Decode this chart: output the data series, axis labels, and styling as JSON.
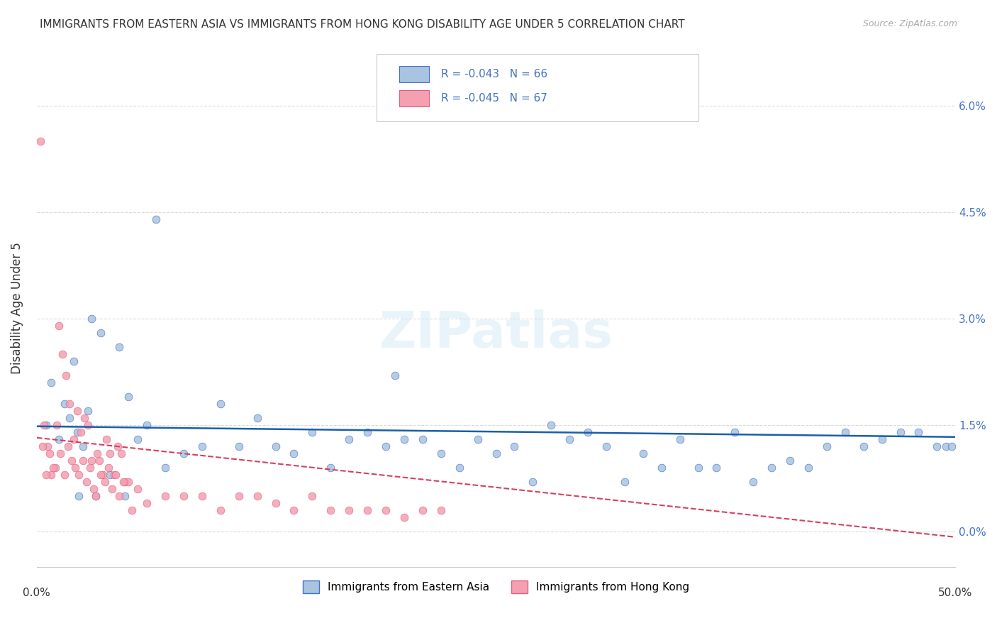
{
  "title": "IMMIGRANTS FROM EASTERN ASIA VS IMMIGRANTS FROM HONG KONG DISABILITY AGE UNDER 5 CORRELATION CHART",
  "source": "Source: ZipAtlas.com",
  "ylabel": "Disability Age Under 5",
  "ytick_vals": [
    0.0,
    1.5,
    3.0,
    4.5,
    6.0
  ],
  "xlim": [
    0.0,
    50.0
  ],
  "ylim": [
    -0.5,
    6.8
  ],
  "legend1_text": "R = -0.043   N = 66",
  "legend2_text": "R = -0.045   N = 67",
  "legend_label1": "Immigrants from Eastern Asia",
  "legend_label2": "Immigrants from Hong Kong",
  "color_blue": "#a8c4e0",
  "color_pink": "#f4a0b0",
  "color_blue_dark": "#4472c4",
  "color_pink_dark": "#e06080",
  "trendline_blue": "#1a5fa8",
  "trendline_pink": "#d44060",
  "blue_slope": -0.003,
  "blue_intercept": 1.48,
  "pink_slope": -0.028,
  "pink_intercept": 1.32,
  "blue_x": [
    0.5,
    0.8,
    1.2,
    1.5,
    1.8,
    2.0,
    2.2,
    2.5,
    2.8,
    3.0,
    3.5,
    4.0,
    4.5,
    5.0,
    5.5,
    6.0,
    7.0,
    8.0,
    9.0,
    10.0,
    11.0,
    12.0,
    13.0,
    14.0,
    15.0,
    16.0,
    17.0,
    18.0,
    19.0,
    20.0,
    21.0,
    22.0,
    23.0,
    24.0,
    25.0,
    26.0,
    27.0,
    28.0,
    29.0,
    30.0,
    31.0,
    32.0,
    33.0,
    34.0,
    35.0,
    36.0,
    37.0,
    38.0,
    39.0,
    40.0,
    41.0,
    42.0,
    43.0,
    44.0,
    45.0,
    46.0,
    47.0,
    48.0,
    49.0,
    49.5,
    49.8,
    2.3,
    3.2,
    4.8,
    6.5,
    19.5
  ],
  "blue_y": [
    1.5,
    2.1,
    1.3,
    1.8,
    1.6,
    2.4,
    1.4,
    1.2,
    1.7,
    3.0,
    2.8,
    0.8,
    2.6,
    1.9,
    1.3,
    1.5,
    0.9,
    1.1,
    1.2,
    1.8,
    1.2,
    1.6,
    1.2,
    1.1,
    1.4,
    0.9,
    1.3,
    1.4,
    1.2,
    1.3,
    1.3,
    1.1,
    0.9,
    1.3,
    1.1,
    1.2,
    0.7,
    1.5,
    1.3,
    1.4,
    1.2,
    0.7,
    1.1,
    0.9,
    1.3,
    0.9,
    0.9,
    1.4,
    0.7,
    0.9,
    1.0,
    0.9,
    1.2,
    1.4,
    1.2,
    1.3,
    1.4,
    1.4,
    1.2,
    1.2,
    1.2,
    0.5,
    0.5,
    0.5,
    4.4,
    2.2
  ],
  "pink_x": [
    0.2,
    0.4,
    0.6,
    0.8,
    1.0,
    1.2,
    1.4,
    1.6,
    1.8,
    2.0,
    2.2,
    2.4,
    2.6,
    2.8,
    3.0,
    3.2,
    3.4,
    3.6,
    3.8,
    4.0,
    4.2,
    4.4,
    4.6,
    4.8,
    5.0,
    5.5,
    6.0,
    7.0,
    8.0,
    9.0,
    10.0,
    11.0,
    12.0,
    13.0,
    14.0,
    15.0,
    16.0,
    17.0,
    18.0,
    19.0,
    20.0,
    21.0,
    22.0,
    0.3,
    0.5,
    0.7,
    0.9,
    1.1,
    1.3,
    1.5,
    1.7,
    1.9,
    2.1,
    2.3,
    2.5,
    2.7,
    2.9,
    3.1,
    3.3,
    3.5,
    3.7,
    3.9,
    4.1,
    4.3,
    4.5,
    4.7,
    5.2
  ],
  "pink_y": [
    5.5,
    1.5,
    1.2,
    0.8,
    0.9,
    2.9,
    2.5,
    2.2,
    1.8,
    1.3,
    1.7,
    1.4,
    1.6,
    1.5,
    1.0,
    0.5,
    1.0,
    0.8,
    1.3,
    1.1,
    0.8,
    1.2,
    1.1,
    0.7,
    0.7,
    0.6,
    0.4,
    0.5,
    0.5,
    0.5,
    0.3,
    0.5,
    0.5,
    0.4,
    0.3,
    0.5,
    0.3,
    0.3,
    0.3,
    0.3,
    0.2,
    0.3,
    0.3,
    1.2,
    0.8,
    1.1,
    0.9,
    1.5,
    1.1,
    0.8,
    1.2,
    1.0,
    0.9,
    0.8,
    1.0,
    0.7,
    0.9,
    0.6,
    1.1,
    0.8,
    0.7,
    0.9,
    0.6,
    0.8,
    0.5,
    0.7,
    0.3
  ]
}
